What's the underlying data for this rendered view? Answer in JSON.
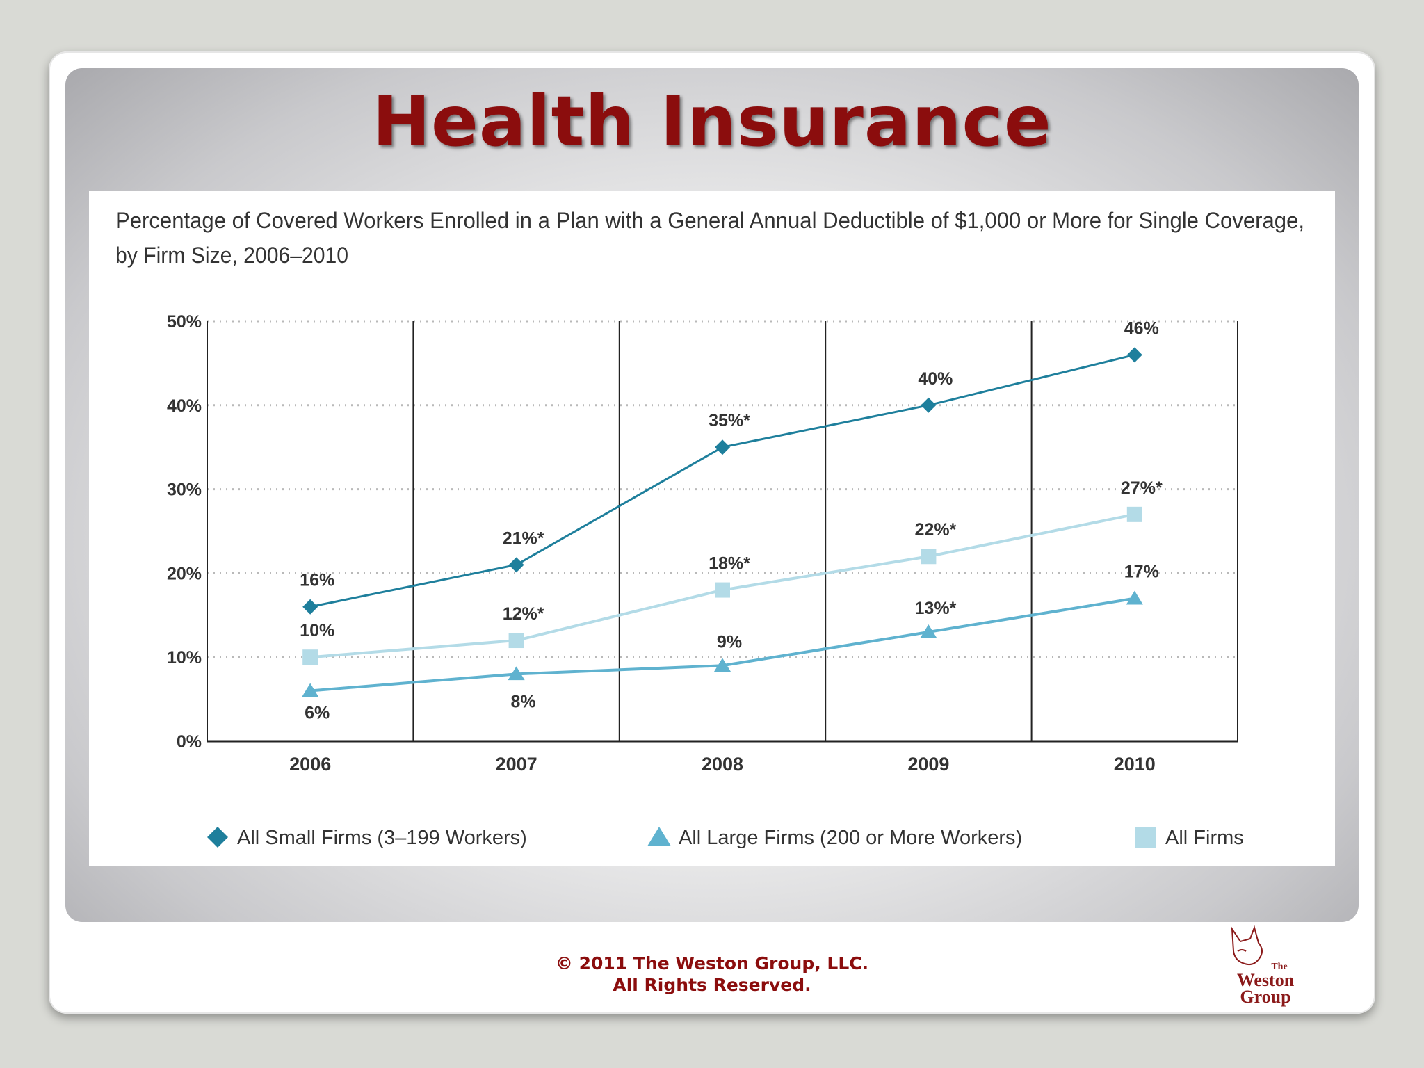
{
  "slide": {
    "title": "Health Insurance",
    "footer_line1": "© 2011 The Weston Group, LLC.",
    "footer_line2": "All Rights Reserved.",
    "logo_small": "The",
    "logo_line1": "Weston",
    "logo_line2": "Group"
  },
  "colors": {
    "title": "#8b0d0d",
    "small_firms": "#1e7f9c",
    "large_firms": "#5fb2cf",
    "all_firms": "#b3dbe7"
  },
  "chart_data": {
    "type": "line",
    "title_line1": "Percentage of Covered Workers Enrolled in a Plan with a General Annual Deductible of $1,000 or More for Single Coverage,",
    "title_line2": "by Firm Size, 2006–2010",
    "categories": [
      "2006",
      "2007",
      "2008",
      "2009",
      "2010"
    ],
    "ylim": [
      0,
      50
    ],
    "yticks": [
      0,
      10,
      20,
      30,
      40,
      50
    ],
    "ytick_labels": [
      "0%",
      "10%",
      "20%",
      "30%",
      "40%",
      "50%"
    ],
    "grid": "dotted-horizontal",
    "legend_position": "bottom",
    "series": [
      {
        "name": "All Small Firms (3–199 Workers)",
        "marker": "diamond",
        "values": [
          16,
          21,
          35,
          40,
          46
        ],
        "labels": [
          "16%",
          "21%*",
          "35%*",
          "40%",
          "46%"
        ]
      },
      {
        "name": "All Large Firms (200 or More Workers)",
        "marker": "triangle",
        "values": [
          6,
          8,
          9,
          13,
          17
        ],
        "labels": [
          "6%",
          "8%",
          "9%",
          "13%*",
          "17%"
        ]
      },
      {
        "name": "All Firms",
        "marker": "square",
        "values": [
          10,
          12,
          18,
          22,
          27
        ],
        "labels": [
          "10%",
          "12%*",
          "18%*",
          "22%*",
          "27%*"
        ]
      }
    ]
  }
}
